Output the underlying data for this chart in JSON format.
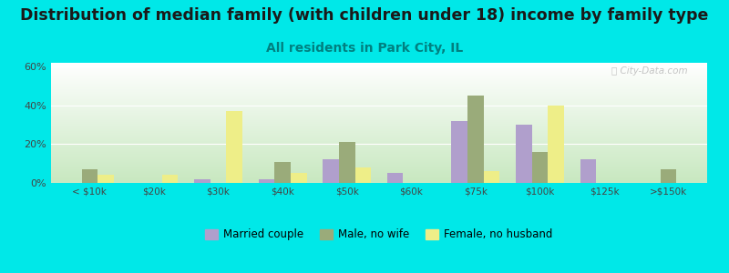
{
  "title": "Distribution of median family (with children under 18) income by family type",
  "subtitle": "All residents in Park City, IL",
  "categories": [
    "< $10k",
    "$20k",
    "$30k",
    "$40k",
    "$50k",
    "$60k",
    "$75k",
    "$100k",
    "$125k",
    ">$150k"
  ],
  "married_couple": [
    0,
    0,
    2,
    2,
    12,
    5,
    32,
    30,
    12,
    0
  ],
  "male_no_wife": [
    7,
    0,
    0,
    11,
    21,
    0,
    45,
    16,
    0,
    7
  ],
  "female_no_husband": [
    4,
    4,
    37,
    5,
    8,
    0,
    6,
    40,
    0,
    0
  ],
  "bar_colors": {
    "married_couple": "#b09fcc",
    "male_no_wife": "#9aab7a",
    "female_no_husband": "#eeee88"
  },
  "legend_colors": {
    "Married couple": "#b09fcc",
    "Male, no wife": "#9aab7a",
    "Female, no husband": "#eeee88"
  },
  "background_color": "#00e8e8",
  "title_fontsize": 12.5,
  "subtitle_fontsize": 10,
  "ylim": [
    0,
    62
  ],
  "watermark": "City-Data.com"
}
